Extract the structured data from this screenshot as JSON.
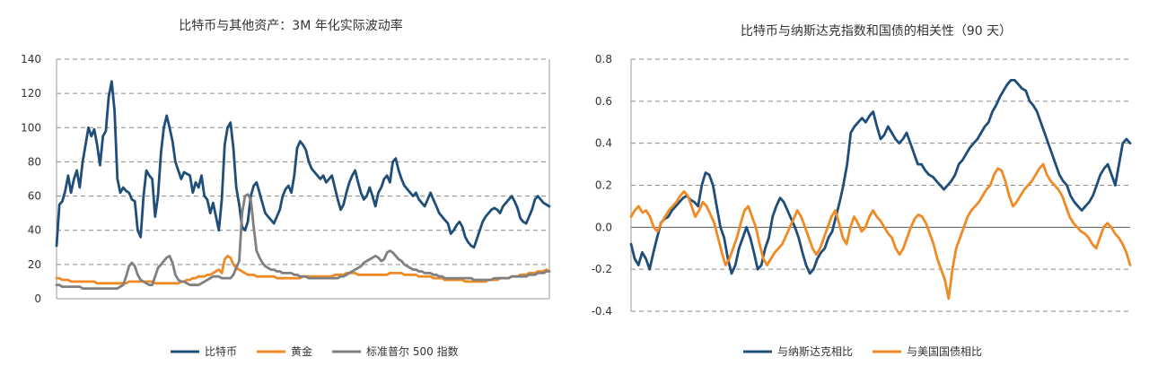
{
  "chart_data": [
    {
      "type": "line",
      "title": "比特币与其他资产：3M 年化实际波动率",
      "xlabel": "",
      "ylabel": "",
      "ylim": [
        0,
        140
      ],
      "yticks": [
        0,
        20,
        40,
        60,
        80,
        100,
        120,
        140
      ],
      "grid": "horizontal dashed",
      "legend_position": "bottom",
      "series": [
        {
          "name": "比特币",
          "color": "#1f4e79",
          "values": [
            31,
            55,
            57,
            63,
            72,
            62,
            70,
            75,
            65,
            80,
            90,
            100,
            95,
            99,
            90,
            78,
            95,
            98,
            118,
            127,
            110,
            70,
            62,
            65,
            63,
            62,
            58,
            57,
            40,
            36,
            60,
            75,
            72,
            70,
            48,
            60,
            85,
            100,
            107,
            100,
            92,
            80,
            75,
            70,
            74,
            73,
            72,
            62,
            68,
            65,
            72,
            60,
            58,
            50,
            56,
            48,
            40,
            58,
            90,
            100,
            103,
            88,
            65,
            55,
            42,
            40,
            45,
            60,
            66,
            68,
            62,
            56,
            50,
            48,
            46,
            44,
            48,
            52,
            60,
            64,
            66,
            62,
            72,
            88,
            92,
            90,
            87,
            80,
            76,
            74,
            72,
            70,
            72,
            68,
            70,
            72,
            65,
            58,
            52,
            55,
            62,
            68,
            72,
            75,
            68,
            62,
            58,
            60,
            65,
            60,
            54,
            62,
            65,
            70,
            72,
            68,
            80,
            82,
            75,
            70,
            66,
            64,
            62,
            60,
            62,
            58,
            56,
            54,
            58,
            62,
            58,
            54,
            50,
            48,
            46,
            44,
            38,
            40,
            43,
            45,
            42,
            36,
            33,
            31,
            30,
            35,
            40,
            45,
            48,
            50,
            52,
            53,
            52,
            50,
            54,
            56,
            58,
            60,
            57,
            53,
            47,
            45,
            44,
            48,
            52,
            58,
            60,
            58,
            56,
            55,
            54
          ]
        },
        {
          "name": "黄金",
          "color": "#f08a24",
          "values": [
            12,
            12,
            11,
            11,
            11,
            10,
            10,
            10,
            10,
            10,
            10,
            10,
            10,
            10,
            9,
            9,
            9,
            9,
            9,
            9,
            9,
            9,
            9,
            9,
            9,
            10,
            10,
            10,
            10,
            10,
            10,
            10,
            10,
            10,
            9,
            9,
            9,
            9,
            9,
            9,
            9,
            9,
            9,
            10,
            10,
            11,
            11,
            12,
            12,
            13,
            13,
            13,
            14,
            14,
            15,
            16,
            17,
            15,
            23,
            25,
            24,
            20,
            18,
            17,
            16,
            15,
            14,
            14,
            14,
            13,
            13,
            13,
            13,
            13,
            13,
            13,
            12,
            12,
            12,
            12,
            12,
            12,
            12,
            12,
            12,
            13,
            13,
            13,
            13,
            13,
            13,
            13,
            13,
            13,
            13,
            13,
            14,
            14,
            14,
            14,
            15,
            15,
            15,
            15,
            14,
            14,
            14,
            14,
            14,
            14,
            14,
            14,
            14,
            14,
            14,
            15,
            15,
            15,
            15,
            15,
            14,
            14,
            14,
            14,
            14,
            13,
            13,
            13,
            13,
            13,
            12,
            12,
            12,
            12,
            11,
            11,
            11,
            11,
            11,
            11,
            11,
            10,
            10,
            10,
            10,
            10,
            10,
            10,
            10,
            11,
            11,
            11,
            11,
            12,
            12,
            12,
            12,
            13,
            13,
            13,
            14,
            14,
            14,
            15,
            15,
            15,
            16,
            16,
            16,
            17,
            16
          ]
        },
        {
          "name": "标准普尔 500 指数",
          "color": "#808080",
          "values": [
            8,
            8,
            7,
            7,
            7,
            7,
            7,
            7,
            7,
            6,
            6,
            6,
            6,
            6,
            6,
            6,
            6,
            6,
            6,
            6,
            6,
            6,
            7,
            8,
            13,
            19,
            21,
            19,
            14,
            11,
            10,
            9,
            8,
            8,
            13,
            18,
            20,
            22,
            24,
            25,
            21,
            14,
            11,
            10,
            10,
            9,
            8,
            8,
            8,
            8,
            9,
            10,
            11,
            12,
            13,
            13,
            13,
            12,
            12,
            12,
            12,
            14,
            18,
            22,
            50,
            60,
            61,
            58,
            42,
            28,
            24,
            21,
            19,
            18,
            17,
            17,
            16,
            16,
            15,
            15,
            15,
            15,
            14,
            14,
            13,
            13,
            13,
            12,
            12,
            12,
            12,
            12,
            12,
            12,
            12,
            12,
            12,
            12,
            13,
            13,
            14,
            15,
            16,
            17,
            18,
            19,
            21,
            22,
            23,
            24,
            25,
            24,
            22,
            23,
            27,
            28,
            27,
            25,
            23,
            22,
            20,
            19,
            18,
            17,
            17,
            16,
            16,
            15,
            15,
            15,
            14,
            14,
            13,
            13,
            12,
            12,
            12,
            12,
            12,
            12,
            12,
            12,
            12,
            12,
            11,
            11,
            11,
            11,
            11,
            11,
            11,
            12,
            12,
            12,
            12,
            12,
            12,
            13,
            13,
            13,
            13,
            13,
            13,
            14,
            14,
            14,
            15,
            15,
            15,
            16,
            16
          ]
        }
      ]
    },
    {
      "type": "line",
      "title": "比特币与纳斯达克指数和国债的相关性（90 天）",
      "xlabel": "",
      "ylabel": "",
      "ylim": [
        -0.4,
        0.8
      ],
      "yticks": [
        -0.4,
        -0.2,
        0.0,
        0.2,
        0.4,
        0.6,
        0.8
      ],
      "grid": "horizontal dashed",
      "legend_position": "bottom",
      "series": [
        {
          "name": "与纳斯达克相比",
          "color": "#1f4e79",
          "values": [
            -0.08,
            -0.15,
            -0.18,
            -0.12,
            -0.15,
            -0.2,
            -0.12,
            -0.05,
            0.02,
            0.04,
            0.05,
            0.08,
            0.1,
            0.12,
            0.14,
            0.15,
            0.13,
            0.12,
            0.1,
            0.2,
            0.26,
            0.25,
            0.2,
            0.1,
            0.0,
            -0.05,
            -0.15,
            -0.22,
            -0.18,
            -0.1,
            -0.05,
            0.0,
            -0.05,
            -0.12,
            -0.2,
            -0.18,
            -0.1,
            -0.05,
            0.05,
            0.1,
            0.14,
            0.12,
            0.08,
            0.04,
            0.0,
            -0.05,
            -0.12,
            -0.18,
            -0.22,
            -0.2,
            -0.15,
            -0.12,
            -0.1,
            -0.05,
            -0.02,
            0.05,
            0.12,
            0.2,
            0.3,
            0.45,
            0.48,
            0.5,
            0.52,
            0.5,
            0.53,
            0.55,
            0.48,
            0.42,
            0.44,
            0.48,
            0.45,
            0.42,
            0.4,
            0.42,
            0.45,
            0.4,
            0.35,
            0.3,
            0.3,
            0.27,
            0.25,
            0.24,
            0.22,
            0.2,
            0.18,
            0.2,
            0.22,
            0.25,
            0.3,
            0.32,
            0.35,
            0.38,
            0.4,
            0.42,
            0.45,
            0.48,
            0.5,
            0.55,
            0.58,
            0.62,
            0.65,
            0.68,
            0.7,
            0.7,
            0.68,
            0.66,
            0.65,
            0.6,
            0.58,
            0.55,
            0.5,
            0.45,
            0.4,
            0.35,
            0.3,
            0.25,
            0.22,
            0.2,
            0.15,
            0.12,
            0.1,
            0.08,
            0.1,
            0.12,
            0.15,
            0.2,
            0.25,
            0.28,
            0.3,
            0.25,
            0.2,
            0.3,
            0.4,
            0.42,
            0.4
          ]
        },
        {
          "name": "与美国国债相比",
          "color": "#f08a24",
          "values": [
            0.05,
            0.08,
            0.1,
            0.07,
            0.08,
            0.05,
            0.0,
            -0.02,
            0.02,
            0.05,
            0.08,
            0.1,
            0.12,
            0.15,
            0.17,
            0.15,
            0.1,
            0.05,
            0.08,
            0.12,
            0.1,
            0.06,
            0.02,
            -0.05,
            -0.12,
            -0.18,
            -0.15,
            -0.1,
            -0.05,
            0.02,
            0.08,
            0.1,
            0.05,
            0.0,
            -0.08,
            -0.15,
            -0.18,
            -0.15,
            -0.12,
            -0.1,
            -0.08,
            -0.04,
            0.0,
            0.04,
            0.08,
            0.05,
            0.0,
            -0.05,
            -0.1,
            -0.13,
            -0.1,
            -0.05,
            0.0,
            0.05,
            0.08,
            0.02,
            -0.05,
            -0.08,
            0.0,
            0.05,
            0.02,
            -0.02,
            0.0,
            0.05,
            0.08,
            0.05,
            0.03,
            0.0,
            -0.03,
            -0.05,
            -0.1,
            -0.13,
            -0.1,
            -0.05,
            0.0,
            0.04,
            0.06,
            0.05,
            0.02,
            -0.03,
            -0.08,
            -0.15,
            -0.2,
            -0.25,
            -0.34,
            -0.2,
            -0.1,
            -0.05,
            0.0,
            0.05,
            0.08,
            0.1,
            0.12,
            0.15,
            0.18,
            0.2,
            0.25,
            0.28,
            0.27,
            0.22,
            0.15,
            0.1,
            0.12,
            0.15,
            0.18,
            0.2,
            0.22,
            0.25,
            0.28,
            0.3,
            0.25,
            0.22,
            0.2,
            0.18,
            0.15,
            0.1,
            0.05,
            0.02,
            0.0,
            -0.02,
            -0.03,
            -0.05,
            -0.08,
            -0.1,
            -0.05,
            0.0,
            0.02,
            0.0,
            -0.03,
            -0.05,
            -0.08,
            -0.12,
            -0.18
          ]
        }
      ]
    }
  ]
}
